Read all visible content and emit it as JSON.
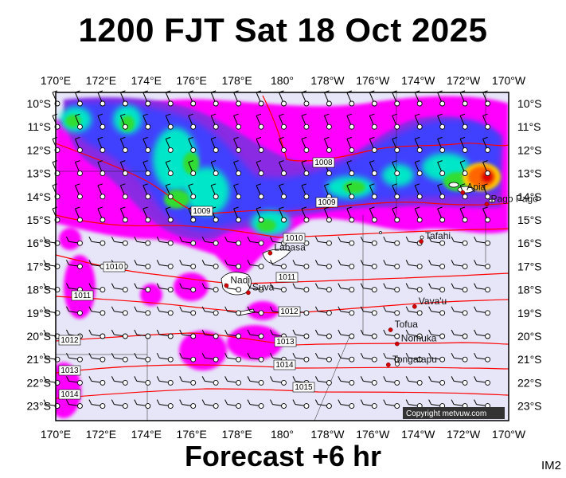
{
  "title": "1200 FJT Sat 18 Oct 2025",
  "footer": "Forecast +6 hr",
  "corner_label": "IM2",
  "copyright": "Copyright metvuw.com",
  "map": {
    "lon_labels": [
      "170°E",
      "172°E",
      "174°E",
      "176°E",
      "178°E",
      "180°",
      "178°W",
      "176°W",
      "174°W",
      "172°W",
      "170°W"
    ],
    "lat_labels": [
      "10°S",
      "11°S",
      "12°S",
      "13°S",
      "14°S",
      "15°S",
      "16°S",
      "17°S",
      "18°S",
      "19°S",
      "20°S",
      "21°S",
      "22°S",
      "23°S"
    ],
    "places": [
      {
        "name": "Labasa",
        "lon": 179.4,
        "lat": -16.4
      },
      {
        "name": "Nadi",
        "lon": 177.4,
        "lat": -17.8
      },
      {
        "name": "Suva",
        "lon": 178.4,
        "lat": -18.1
      },
      {
        "name": "Apia",
        "lon": -171.8,
        "lat": -13.8
      },
      {
        "name": "Pago Pago",
        "lon": -170.7,
        "lat": -14.3
      },
      {
        "name": "Tafahi",
        "lon": -173.7,
        "lat": -15.9
      },
      {
        "name": "Vava'u",
        "lon": -174.0,
        "lat": -18.7
      },
      {
        "name": "Tofua",
        "lon": -175.1,
        "lat": -19.7
      },
      {
        "name": "Nomuka",
        "lon": -174.8,
        "lat": -20.3
      },
      {
        "name": "Tongatapu",
        "lon": -175.2,
        "lat": -21.2
      }
    ],
    "isobar_labels": [
      "1008",
      "1009",
      "1009",
      "1010",
      "1010",
      "1011",
      "1011",
      "1012",
      "1012",
      "1013",
      "1013",
      "1014",
      "1014",
      "1015"
    ],
    "colors": {
      "ocean": "#e6e6f8",
      "rain_light": "#ff00ff",
      "rain_moderate": "#8a2be2",
      "rain_mid": "#4040ff",
      "rain_heavy": "#00e6c8",
      "rain_very_heavy": "#33dd33",
      "rain_extreme": "#ff6600",
      "isobar": "#ff0000"
    }
  }
}
